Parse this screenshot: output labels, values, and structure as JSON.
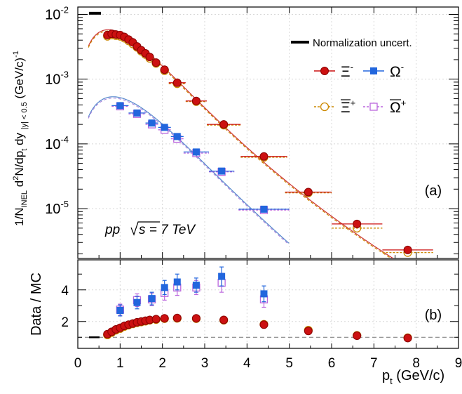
{
  "chart_data": [
    {
      "type": "scatter",
      "panel_label": "(a)",
      "ylabel_main": "1/N",
      "ylabel_sub1": "INEL",
      "ylabel_mid": " d",
      "ylabel_sup": "2",
      "ylabel_rest": "N/dp",
      "ylabel_sub2": "t",
      "ylabel_tail": " dy ",
      "ylabel_bar_sub": "|y| < 0.5",
      "ylabel_units": " (GeV/c)",
      "ylabel_units_sup": "-1",
      "yscale": "log",
      "xlim": [
        0,
        9
      ],
      "ylim": [
        1.7e-06,
        0.013
      ],
      "yticks": [
        "10",
        "10",
        "10",
        "10"
      ],
      "ytick_exponents": [
        "-2",
        "-3",
        "-4",
        "-5"
      ],
      "ytick_values": [
        0.01,
        0.001,
        0.0001,
        1e-05
      ],
      "annotation_pp": "pp",
      "annotation_energy": "s = 7 TeV",
      "legend": {
        "placement": "top-right",
        "norm_label": "Normalization uncert.",
        "xi_minus": "Ξ",
        "xi_minus_sup": "-",
        "omega_minus": "Ω",
        "omega_minus_sup": "-",
        "xi_plus": "Ξ",
        "xi_plus_sup": "+",
        "omega_plus": "Ω",
        "omega_plus_sup": "+"
      },
      "series": [
        {
          "name": "Ξ-",
          "x": [
            0.7,
            0.8,
            0.9,
            1.0,
            1.1,
            1.2,
            1.3,
            1.4,
            1.5,
            1.6,
            1.7,
            1.85,
            2.05,
            2.35,
            2.8,
            3.45,
            4.4,
            5.45,
            6.6,
            7.8
          ],
          "xerr": [
            0.05,
            0.05,
            0.05,
            0.05,
            0.05,
            0.05,
            0.05,
            0.05,
            0.05,
            0.05,
            0.05,
            0.1,
            0.1,
            0.2,
            0.25,
            0.4,
            0.55,
            0.55,
            0.6,
            0.6
          ],
          "y": [
            0.0048,
            0.005,
            0.0049,
            0.0048,
            0.0045,
            0.0041,
            0.0037,
            0.0032,
            0.0028,
            0.0025,
            0.0022,
            0.0018,
            0.0014,
            0.00088,
            0.00046,
            0.0002,
            6.4e-05,
            1.8e-05,
            5.8e-06,
            2.3e-06
          ],
          "color": "#cc1111"
        },
        {
          "name": "Ξ+",
          "x": [
            0.7,
            0.8,
            0.9,
            1.0,
            1.1,
            1.2,
            1.3,
            1.4,
            1.5,
            1.6,
            1.7,
            1.85,
            2.05,
            2.35,
            2.8,
            3.45,
            4.4,
            5.45,
            6.6,
            7.8
          ],
          "xerr": [
            0.05,
            0.05,
            0.05,
            0.05,
            0.05,
            0.05,
            0.05,
            0.05,
            0.05,
            0.05,
            0.05,
            0.1,
            0.1,
            0.2,
            0.25,
            0.4,
            0.55,
            0.55,
            0.6,
            0.6
          ],
          "y": [
            0.0046,
            0.0048,
            0.0047,
            0.0046,
            0.0043,
            0.0039,
            0.0035,
            0.0031,
            0.0027,
            0.0024,
            0.0021,
            0.00175,
            0.00135,
            0.00085,
            0.00045,
            0.000195,
            6.2e-05,
            1.75e-05,
            5e-06,
            2.1e-06
          ],
          "color": "#cc8800"
        },
        {
          "name": "Ω-",
          "x": [
            1.0,
            1.4,
            1.75,
            2.05,
            2.35,
            2.8,
            3.4,
            4.4
          ],
          "xerr": [
            0.2,
            0.2,
            0.15,
            0.15,
            0.15,
            0.3,
            0.3,
            0.6
          ],
          "y": [
            0.00039,
            0.0003,
            0.00021,
            0.00018,
            0.00013,
            7.5e-05,
            3.8e-05,
            9.8e-06
          ],
          "color": "#2266dd"
        },
        {
          "name": "Ω+",
          "x": [
            1.0,
            1.4,
            1.75,
            2.05,
            2.35,
            2.8,
            3.4,
            4.4
          ],
          "xerr": [
            0.2,
            0.2,
            0.15,
            0.15,
            0.15,
            0.3,
            0.3,
            0.6
          ],
          "y": [
            0.00038,
            0.00029,
            0.0002,
            0.000165,
            0.00012,
            7.2e-05,
            3.7e-05,
            9.5e-06
          ],
          "color": "#bb66dd"
        }
      ]
    },
    {
      "type": "scatter",
      "panel_label": "(b)",
      "ylabel": "Data / MC",
      "xlabel": "p",
      "xlabel_sub": "t",
      "xlabel_units": " (GeV/c)",
      "xlim": [
        0,
        9
      ],
      "ylim": [
        0.3,
        5.9
      ],
      "xticks": [
        "0",
        "1",
        "2",
        "3",
        "4",
        "5",
        "6",
        "7",
        "8",
        "9"
      ],
      "yticks": [
        "2",
        "4"
      ],
      "reference_line": 1,
      "series": [
        {
          "name": "Ξ-",
          "x": [
            0.7,
            0.8,
            0.9,
            1.0,
            1.1,
            1.2,
            1.3,
            1.4,
            1.5,
            1.6,
            1.7,
            1.85,
            2.05,
            2.35,
            2.8,
            3.45,
            4.4,
            5.45,
            6.6,
            7.8
          ],
          "y": [
            1.2,
            1.35,
            1.5,
            1.6,
            1.72,
            1.8,
            1.87,
            1.95,
            2.0,
            2.05,
            2.1,
            2.15,
            2.2,
            2.22,
            2.2,
            2.1,
            1.8,
            1.4,
            1.1,
            0.95
          ],
          "color": "#cc1111"
        },
        {
          "name": "Ξ+",
          "x": [
            0.7,
            0.8,
            0.9,
            1.0,
            1.1,
            1.2,
            1.3,
            1.4,
            1.5,
            1.6,
            1.7,
            1.85,
            2.05,
            2.35,
            2.8,
            3.45,
            4.4,
            5.45,
            6.6,
            7.8
          ],
          "y": [
            1.15,
            1.3,
            1.45,
            1.55,
            1.68,
            1.77,
            1.85,
            1.92,
            1.97,
            2.02,
            2.08,
            2.12,
            2.18,
            2.2,
            2.18,
            2.08,
            1.82,
            1.45,
            1.12,
            0.97
          ],
          "color": "#cc8800"
        },
        {
          "name": "Ω-",
          "x": [
            1.0,
            1.4,
            1.75,
            2.05,
            2.35,
            2.8,
            3.4,
            4.4
          ],
          "y": [
            2.7,
            3.2,
            3.45,
            4.15,
            4.5,
            4.3,
            4.85,
            3.75
          ],
          "yerr": [
            0.35,
            0.4,
            0.4,
            0.45,
            0.5,
            0.45,
            0.6,
            0.5
          ],
          "color": "#2266dd"
        },
        {
          "name": "Ω+",
          "x": [
            1.0,
            1.4,
            1.75,
            2.05,
            2.35,
            2.8,
            3.4,
            4.4
          ],
          "y": [
            2.75,
            3.35,
            3.4,
            3.8,
            4.15,
            4.15,
            4.45,
            3.4
          ],
          "yerr": [
            0.35,
            0.4,
            0.4,
            0.45,
            0.5,
            0.45,
            0.6,
            0.5
          ],
          "color": "#bb66dd"
        }
      ]
    }
  ]
}
